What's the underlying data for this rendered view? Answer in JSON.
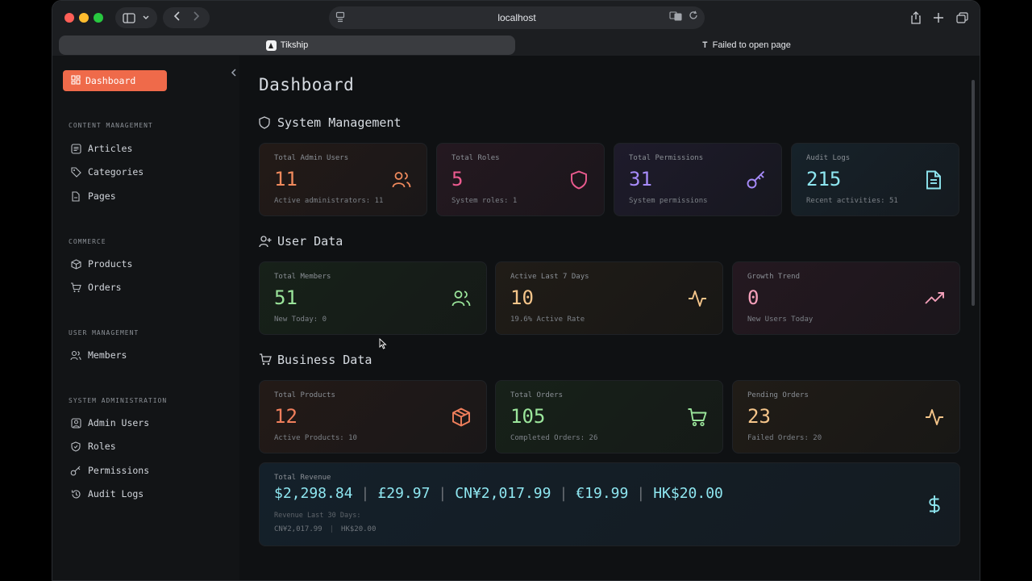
{
  "browser": {
    "url": "localhost",
    "tabs": [
      {
        "title": "Tikship",
        "active": true
      },
      {
        "title": "Failed to open page",
        "active": false
      }
    ]
  },
  "sidebar": {
    "active_item": "Dashboard",
    "sections": [
      {
        "label": "CONTENT MANAGEMENT",
        "items": [
          "Articles",
          "Categories",
          "Pages"
        ]
      },
      {
        "label": "COMMERCE",
        "items": [
          "Products",
          "Orders"
        ]
      },
      {
        "label": "USER MANAGEMENT",
        "items": [
          "Members"
        ]
      },
      {
        "label": "SYSTEM ADMINISTRATION",
        "items": [
          "Admin Users",
          "Roles",
          "Permissions",
          "Audit Logs"
        ]
      }
    ]
  },
  "page": {
    "title": "Dashboard",
    "system": {
      "heading": "System Management",
      "cards": [
        {
          "label": "Total Admin Users",
          "value": "11",
          "sub": "Active administrators: 11"
        },
        {
          "label": "Total Roles",
          "value": "5",
          "sub": "System roles: 1"
        },
        {
          "label": "Total Permissions",
          "value": "31",
          "sub": "System permissions"
        },
        {
          "label": "Audit Logs",
          "value": "215",
          "sub": "Recent activities: 51"
        }
      ]
    },
    "user": {
      "heading": "User Data",
      "cards": [
        {
          "label": "Total Members",
          "value": "51",
          "sub": "New Today: 0"
        },
        {
          "label": "Active Last 7 Days",
          "value": "10",
          "sub": "19.6% Active Rate"
        },
        {
          "label": "Growth Trend",
          "value": "0",
          "sub": "New Users Today"
        }
      ]
    },
    "business": {
      "heading": "Business Data",
      "cards": [
        {
          "label": "Total Products",
          "value": "12",
          "sub": "Active Products: 10"
        },
        {
          "label": "Total Orders",
          "value": "105",
          "sub": "Completed Orders: 26"
        },
        {
          "label": "Pending Orders",
          "value": "23",
          "sub": "Failed Orders: 20"
        }
      ],
      "revenue": {
        "label": "Total Revenue",
        "values": [
          "$2,298.84",
          "£29.97",
          "CN¥2,017.99",
          "€19.99",
          "HK$20.00"
        ],
        "last30_label": "Revenue Last 30 Days:",
        "last30_values": [
          "CN¥2,017.99",
          "HK$20.00"
        ]
      }
    }
  },
  "colors": {
    "accent": "#ef6a4a",
    "orange": "#f08a5d",
    "pink": "#ec5b8f",
    "purple": "#a78bfa",
    "teal": "#8ee6f0",
    "green": "#9be59b",
    "amber": "#f5c58a"
  }
}
